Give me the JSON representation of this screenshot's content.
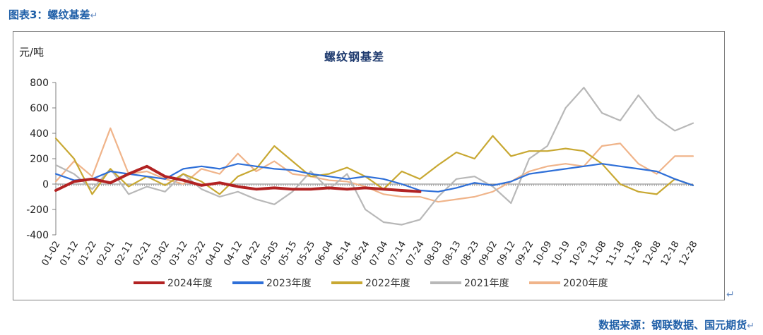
{
  "figure_title": "图表3：螺纹基差",
  "return_mark": "↵",
  "source_text": "数据来源：钢联数据、国元期货",
  "chart_data": {
    "type": "line",
    "title": "螺纹钢基差",
    "ylabel": "元/吨",
    "xlabel": "",
    "ylim": [
      -400,
      800
    ],
    "yticks": [
      -400,
      -200,
      0,
      200,
      400,
      600,
      800
    ],
    "x_tick_labels": [
      "01-02",
      "01-12",
      "01-22",
      "02-01",
      "02-11",
      "02-21",
      "03-02",
      "03-12",
      "03-22",
      "04-01",
      "04-12",
      "04-22",
      "05-05",
      "05-15",
      "05-25",
      "06-04",
      "06-14",
      "06-24",
      "07-04",
      "07-14",
      "07-24",
      "08-03",
      "08-13",
      "08-23",
      "09-02",
      "09-12",
      "09-22",
      "10-09",
      "10-19",
      "10-29",
      "11-08",
      "11-18",
      "11-28",
      "12-08",
      "12-18",
      "12-28"
    ],
    "grid": false,
    "legend_position": "bottom",
    "series": [
      {
        "name": "2024年度",
        "color": "#b22222",
        "x": [
          0,
          1,
          2,
          3,
          4,
          5,
          6,
          7,
          8,
          9,
          10,
          11,
          12,
          13,
          14,
          15,
          16,
          17,
          18,
          19,
          20
        ],
        "y": [
          -50,
          20,
          40,
          10,
          80,
          140,
          60,
          30,
          -10,
          10,
          -20,
          -40,
          -30,
          -40,
          -40,
          -30,
          -40,
          -30,
          -40,
          -50,
          -60
        ]
      },
      {
        "name": "2023年度",
        "color": "#2e6fd8",
        "x": [
          0,
          1,
          2,
          3,
          4,
          5,
          6,
          7,
          8,
          9,
          10,
          11,
          12,
          13,
          14,
          15,
          16,
          17,
          18,
          19,
          20,
          21,
          22,
          23,
          24,
          25,
          26,
          27,
          28,
          29,
          30,
          31,
          32,
          33,
          34,
          35
        ],
        "y": [
          80,
          30,
          40,
          100,
          80,
          60,
          40,
          120,
          140,
          120,
          160,
          140,
          120,
          110,
          80,
          60,
          40,
          60,
          40,
          0,
          -50,
          -60,
          -30,
          10,
          -10,
          20,
          80,
          100,
          120,
          140,
          160,
          140,
          120,
          100,
          40,
          -10
        ]
      },
      {
        "name": "2022年度",
        "color": "#c8a832",
        "x": [
          0,
          1,
          2,
          3,
          4,
          5,
          6,
          7,
          8,
          9,
          10,
          11,
          12,
          13,
          14,
          15,
          16,
          17,
          18,
          19,
          20,
          21,
          22,
          23,
          24,
          25,
          26,
          27,
          28,
          29,
          30,
          31,
          32,
          33,
          34,
          35
        ],
        "y": [
          360,
          200,
          -80,
          120,
          -20,
          60,
          -10,
          80,
          20,
          -80,
          60,
          120,
          300,
          180,
          60,
          80,
          130,
          60,
          -40,
          100,
          40,
          150,
          250,
          200,
          380,
          220,
          260,
          260,
          280,
          260,
          160,
          0,
          -60,
          -80,
          40,
          -10
        ]
      },
      {
        "name": "2021年度",
        "color": "#b8b8b8",
        "x": [
          0,
          1,
          2,
          3,
          4,
          5,
          6,
          7,
          8,
          9,
          10,
          11,
          12,
          13,
          14,
          15,
          16,
          17,
          18,
          19,
          20,
          21,
          22,
          23,
          24,
          25,
          26,
          27,
          28,
          29,
          30,
          31,
          32,
          33,
          34,
          35
        ],
        "y": [
          150,
          80,
          -40,
          120,
          -80,
          -20,
          -60,
          80,
          -40,
          -100,
          -60,
          -120,
          -160,
          -60,
          100,
          -40,
          80,
          -200,
          -300,
          -320,
          -280,
          -100,
          40,
          60,
          -20,
          -150,
          200,
          300,
          600,
          760,
          560,
          500,
          700,
          520,
          420,
          480
        ]
      },
      {
        "name": "2020年度",
        "color": "#f0b48a",
        "x": [
          0,
          1,
          2,
          3,
          4,
          5,
          6,
          7,
          8,
          9,
          10,
          11,
          12,
          13,
          14,
          15,
          16,
          17,
          18,
          19,
          20,
          21,
          22,
          23,
          24,
          25,
          26,
          27,
          28,
          29,
          30,
          31,
          32,
          33,
          34,
          35
        ],
        "y": [
          20,
          180,
          60,
          440,
          80,
          100,
          40,
          0,
          120,
          80,
          240,
          100,
          180,
          80,
          60,
          30,
          20,
          -20,
          -80,
          -100,
          -100,
          -140,
          -120,
          -100,
          -60,
          20,
          100,
          140,
          160,
          140,
          300,
          320,
          160,
          80,
          220,
          220
        ]
      }
    ]
  }
}
